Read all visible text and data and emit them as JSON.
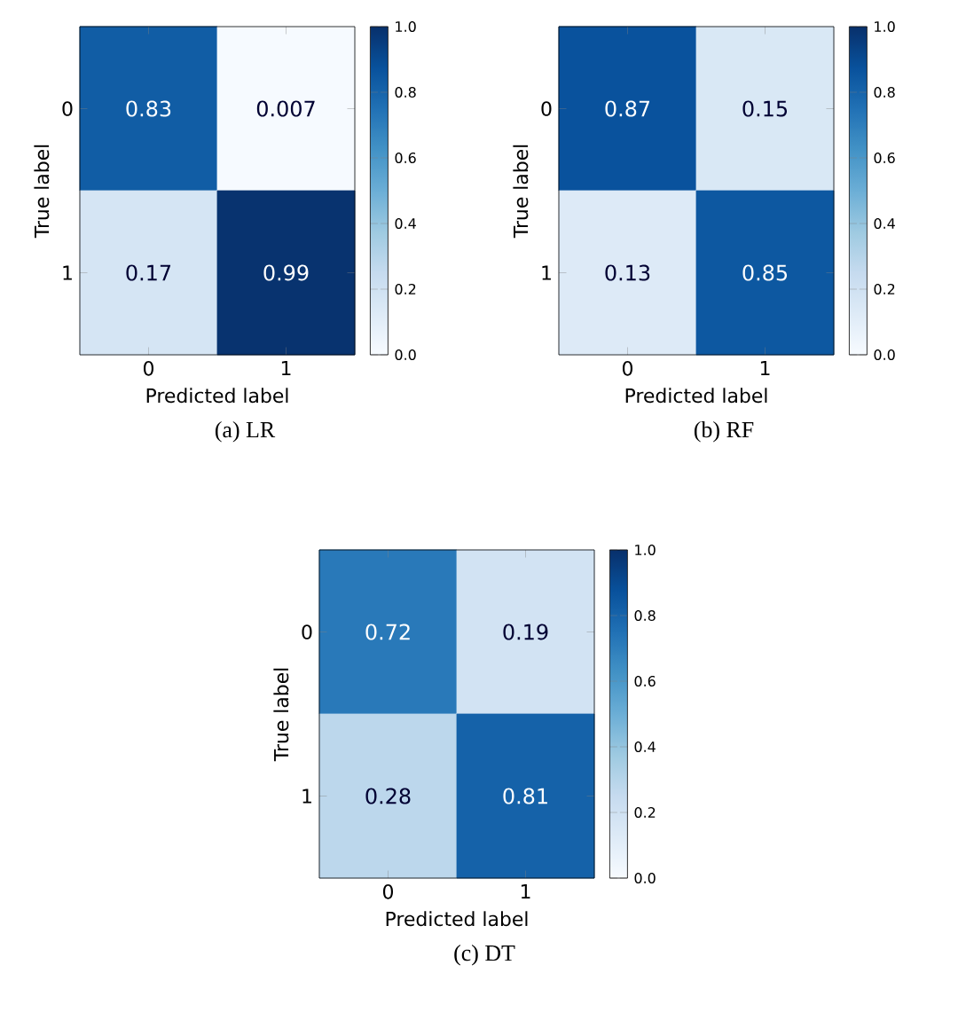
{
  "chart_data": [
    {
      "type": "heatmap",
      "categories": [
        "0",
        "1"
      ],
      "y_categories": [
        "0",
        "1"
      ],
      "cells": [
        [
          0.83,
          0.007
        ],
        [
          0.17,
          0.99
        ]
      ],
      "data_labels": true,
      "xlabel": "Predicted label",
      "ylabel": "True label",
      "clim": [
        0,
        1
      ],
      "cticks": [
        {
          "value": 0,
          "label": "0.0"
        },
        {
          "value": 0.2,
          "label": "0.2"
        },
        {
          "value": 0.4,
          "label": "0.4"
        },
        {
          "value": 0.6,
          "label": "0.6"
        },
        {
          "value": 0.8,
          "label": "0.8"
        },
        {
          "value": 1,
          "label": "1.0"
        }
      ],
      "annotations": [
        "(a) LR"
      ]
    },
    {
      "type": "heatmap",
      "categories": [
        "0",
        "1"
      ],
      "y_categories": [
        "0",
        "1"
      ],
      "cells": [
        [
          0.87,
          0.15
        ],
        [
          0.13,
          0.85
        ]
      ],
      "data_labels": true,
      "xlabel": "Predicted label",
      "ylabel": "True label",
      "clim": [
        0,
        1
      ],
      "cticks": [
        {
          "value": 0,
          "label": "0.0"
        },
        {
          "value": 0.2,
          "label": "0.2"
        },
        {
          "value": 0.4,
          "label": "0.4"
        },
        {
          "value": 0.6,
          "label": "0.6"
        },
        {
          "value": 0.8,
          "label": "0.8"
        },
        {
          "value": 1,
          "label": "1.0"
        }
      ],
      "annotations": [
        "(b) RF"
      ]
    },
    {
      "type": "heatmap",
      "categories": [
        "0",
        "1"
      ],
      "y_categories": [
        "0",
        "1"
      ],
      "cells": [
        [
          0.72,
          0.19
        ],
        [
          0.28,
          0.81
        ]
      ],
      "data_labels": true,
      "xlabel": "Predicted label",
      "ylabel": "True label",
      "clim": [
        0,
        1
      ],
      "cticks": [
        {
          "value": 0,
          "label": "0.0"
        },
        {
          "value": 0.2,
          "label": "0.2"
        },
        {
          "value": 0.4,
          "label": "0.4"
        },
        {
          "value": 0.6,
          "label": "0.6"
        },
        {
          "value": 0.8,
          "label": "0.8"
        },
        {
          "value": 1,
          "label": "1.0"
        }
      ],
      "annotations": [
        "(c) DT"
      ]
    }
  ]
}
